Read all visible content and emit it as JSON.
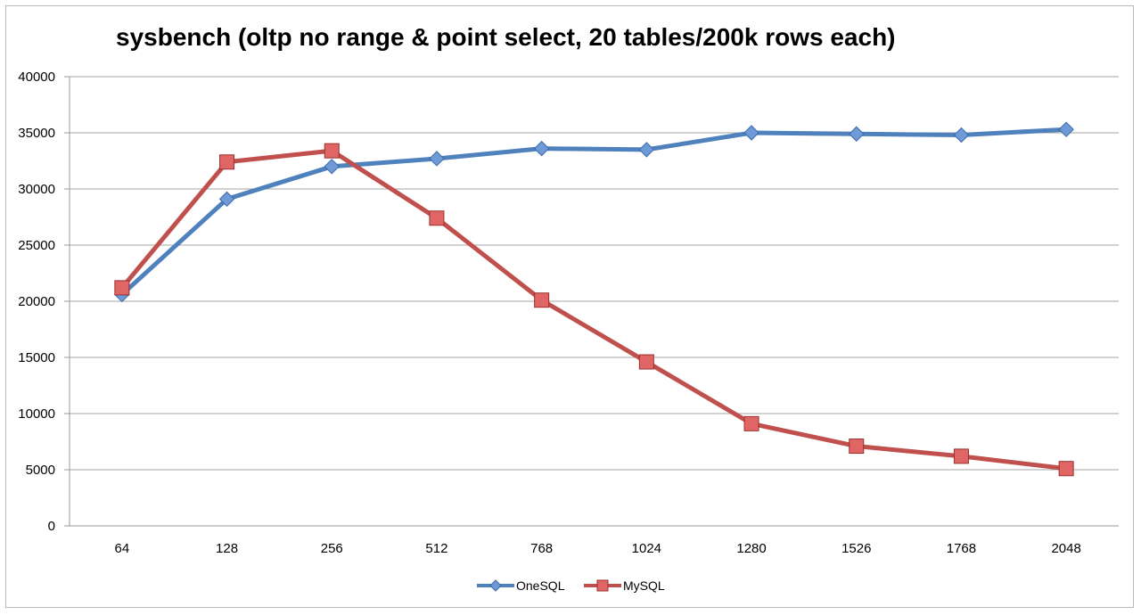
{
  "chart_data": {
    "type": "line",
    "title": "sysbench (oltp no range & point select, 20 tables/200k rows each)",
    "xlabel": "",
    "ylabel": "",
    "categories": [
      "64",
      "128",
      "256",
      "512",
      "768",
      "1024",
      "1280",
      "1526",
      "1768",
      "2048"
    ],
    "ylim": [
      0,
      40000
    ],
    "yticks": [
      0,
      5000,
      10000,
      15000,
      20000,
      25000,
      30000,
      35000,
      40000
    ],
    "grid": true,
    "legend": "bottom",
    "series": [
      {
        "name": "OneSQL",
        "color": "#4f81bd",
        "marker": "diamond",
        "values": [
          20600,
          29100,
          32000,
          32700,
          33600,
          33500,
          35000,
          34900,
          34800,
          35300
        ]
      },
      {
        "name": "MySQL",
        "color": "#c0504d",
        "marker": "square",
        "values": [
          21200,
          32400,
          33400,
          27400,
          20100,
          14600,
          9100,
          7100,
          6200,
          5100
        ]
      }
    ]
  }
}
